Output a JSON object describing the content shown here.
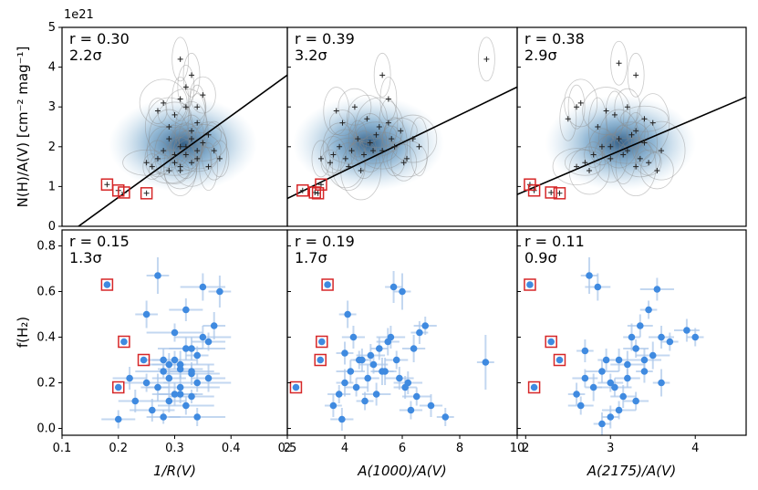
{
  "figure": {
    "y_offset_label": "1e21",
    "top_ylabel": "N(H)/A(V) [cm⁻² mag⁻¹]",
    "bottom_ylabel": "f(H₂)"
  },
  "chart_data": [
    {
      "type": "scatter",
      "panel": "top-left",
      "xlim": [
        0.1,
        0.5
      ],
      "ylim": [
        0,
        5
      ],
      "yticks": [
        "0",
        "1",
        "2",
        "3",
        "4",
        "5"
      ],
      "r_text": "r = 0.30",
      "sig_text": "2.2σ",
      "line": {
        "x": [
          0.1,
          0.5
        ],
        "y": [
          -0.3,
          3.8
        ]
      },
      "x": [
        0.26,
        0.27,
        0.28,
        0.29,
        0.3,
        0.31,
        0.32,
        0.33,
        0.34,
        0.35,
        0.36,
        0.37,
        0.3,
        0.32,
        0.28,
        0.34,
        0.36,
        0.31,
        0.33,
        0.29,
        0.27,
        0.35,
        0.32,
        0.3,
        0.25,
        0.38,
        0.33,
        0.31,
        0.29,
        0.34
      ],
      "y": [
        1.5,
        1.7,
        1.9,
        2.2,
        1.6,
        2.0,
        1.8,
        2.4,
        1.7,
        2.1,
        1.5,
        1.9,
        2.8,
        3.0,
        3.1,
        2.6,
        2.3,
        1.4,
        1.6,
        2.5,
        2.9,
        3.3,
        2.0,
        1.8,
        1.6,
        1.7,
        2.2,
        1.5,
        1.4,
        1.9
      ],
      "highlight_x": [
        0.18,
        0.2,
        0.21,
        0.25
      ],
      "highlight_y": [
        1.05,
        0.9,
        0.85,
        0.83
      ],
      "outliers_x": [
        0.31,
        0.33,
        0.32,
        0.31,
        0.34
      ],
      "outliers_y": [
        4.2,
        3.8,
        3.5,
        3.2,
        3.0
      ]
    },
    {
      "type": "scatter",
      "panel": "top-middle",
      "xlim": [
        2.5,
        10
      ],
      "ylim": [
        0,
        5
      ],
      "r_text": "r = 0.39",
      "sig_text": "3.2σ",
      "line": {
        "x": [
          2.5,
          10
        ],
        "y": [
          0.7,
          3.5
        ]
      },
      "x": [
        3.9,
        4.0,
        4.2,
        4.4,
        4.6,
        4.8,
        5.0,
        5.2,
        5.4,
        5.6,
        5.8,
        6.0,
        6.2,
        6.4,
        6.6,
        6.8,
        4.3,
        4.7,
        5.1,
        5.5,
        5.9,
        6.3,
        4.5,
        4.9,
        5.3,
        3.6,
        4.1
      ],
      "y": [
        1.6,
        1.8,
        2.0,
        1.7,
        1.9,
        2.2,
        1.8,
        2.1,
        2.3,
        1.9,
        2.6,
        2.0,
        2.4,
        1.7,
        2.2,
        2.0,
        2.6,
        3.0,
        2.7,
        2.5,
        2.2,
        1.6,
        1.5,
        1.4,
        1.9,
        1.7,
        2.9
      ],
      "highlight_x": [
        3.0,
        3.4,
        3.5,
        3.6
      ],
      "highlight_y": [
        0.9,
        0.85,
        0.83,
        1.05
      ],
      "outliers_x": [
        5.6,
        9.0,
        5.8
      ],
      "outliers_y": [
        3.8,
        4.2,
        3.2
      ]
    },
    {
      "type": "scatter",
      "panel": "top-right",
      "xlim": [
        1.9,
        4.6
      ],
      "ylim": [
        0,
        5
      ],
      "r_text": "r = 0.38",
      "sig_text": "2.9σ",
      "line": {
        "x": [
          1.9,
          4.6
        ],
        "y": [
          0.8,
          3.25
        ]
      },
      "x": [
        2.8,
        2.9,
        3.0,
        3.1,
        3.2,
        3.3,
        3.4,
        3.5,
        2.7,
        2.6,
        3.05,
        3.15,
        3.25,
        3.35,
        2.95,
        2.85,
        3.45,
        3.55,
        2.75,
        3.6,
        3.0,
        3.2,
        2.65,
        3.3,
        3.4
      ],
      "y": [
        1.8,
        2.0,
        1.7,
        2.2,
        1.9,
        2.4,
        2.1,
        2.6,
        1.6,
        1.5,
        2.8,
        1.8,
        2.3,
        1.7,
        2.9,
        2.5,
        1.6,
        1.4,
        1.4,
        1.9,
        2.0,
        3.0,
        3.1,
        1.5,
        2.7
      ],
      "highlight_x": [
        2.05,
        2.1,
        2.3,
        2.4
      ],
      "highlight_y": [
        1.05,
        0.9,
        0.85,
        0.83
      ],
      "outliers_x": [
        3.1,
        3.3,
        2.6,
        2.5
      ],
      "outliers_y": [
        4.1,
        3.8,
        3.0,
        2.7
      ]
    },
    {
      "type": "scatter",
      "panel": "bottom-left",
      "xlim": [
        0.1,
        0.5
      ],
      "ylim": [
        -0.03,
        0.87
      ],
      "xticks": [
        "0.1",
        "0.2",
        "0.3",
        "0.4",
        "0.5"
      ],
      "yticks": [
        "0.0",
        "0.2",
        "0.4",
        "0.6",
        "0.8"
      ],
      "xlabel": "1/R(V)",
      "r_text": "r = 0.15",
      "sig_text": "1.3σ",
      "x": [
        0.23,
        0.25,
        0.27,
        0.28,
        0.29,
        0.3,
        0.31,
        0.32,
        0.33,
        0.34,
        0.35,
        0.36,
        0.37,
        0.3,
        0.32,
        0.28,
        0.26,
        0.34,
        0.36,
        0.31,
        0.33,
        0.29,
        0.27,
        0.35,
        0.32,
        0.3,
        0.38,
        0.33,
        0.31,
        0.29,
        0.34,
        0.28,
        0.25,
        0.2,
        0.22,
        0.31,
        0.33
      ],
      "y": [
        0.12,
        0.2,
        0.18,
        0.25,
        0.22,
        0.3,
        0.28,
        0.35,
        0.25,
        0.32,
        0.4,
        0.38,
        0.45,
        0.15,
        0.1,
        0.05,
        0.08,
        0.2,
        0.22,
        0.18,
        0.14,
        0.28,
        0.67,
        0.62,
        0.52,
        0.42,
        0.6,
        0.35,
        0.15,
        0.12,
        0.05,
        0.3,
        0.5,
        0.04,
        0.22,
        0.26,
        0.24
      ],
      "err_x": [
        0.03,
        0.04,
        0.02,
        0.05,
        0.03,
        0.04,
        0.06,
        0.03,
        0.04,
        0.02,
        0.05,
        0.03,
        0.02,
        0.04,
        0.05,
        0.03,
        0.04,
        0.06,
        0.03,
        0.07,
        0.04,
        0.03,
        0.02,
        0.04,
        0.03,
        0.05,
        0.02,
        0.06,
        0.04,
        0.03,
        0.05,
        0.03,
        0.02,
        0.03,
        0.03,
        0.04,
        0.05
      ],
      "err_y": [
        0.05,
        0.04,
        0.06,
        0.03,
        0.05,
        0.04,
        0.06,
        0.05,
        0.03,
        0.04,
        0.05,
        0.04,
        0.06,
        0.05,
        0.04,
        0.03,
        0.05,
        0.04,
        0.06,
        0.05,
        0.03,
        0.05,
        0.08,
        0.06,
        0.05,
        0.04,
        0.07,
        0.05,
        0.04,
        0.05,
        0.04,
        0.05,
        0.06,
        0.04,
        0.05,
        0.04,
        0.05
      ],
      "highlight_x": [
        0.18,
        0.21,
        0.245,
        0.2
      ],
      "highlight_y": [
        0.63,
        0.38,
        0.3,
        0.18
      ]
    },
    {
      "type": "scatter",
      "panel": "bottom-middle",
      "xlim": [
        2,
        10
      ],
      "ylim": [
        -0.03,
        0.87
      ],
      "xticks": [
        "2",
        "4",
        "6",
        "8",
        "10"
      ],
      "xlabel": "A(1000)/A(V)",
      "r_text": "r = 0.19",
      "sig_text": "1.7σ",
      "x": [
        3.6,
        3.8,
        4.0,
        4.2,
        4.4,
        4.6,
        4.8,
        5.0,
        5.2,
        5.4,
        5.6,
        5.8,
        6.0,
        6.2,
        6.4,
        6.6,
        6.8,
        4.1,
        4.3,
        4.5,
        4.9,
        5.3,
        5.7,
        6.1,
        6.5,
        7.0,
        7.5,
        8.9,
        3.9,
        4.7,
        5.1,
        5.5,
        4.0,
        6.3,
        5.9
      ],
      "y": [
        0.1,
        0.15,
        0.2,
        0.25,
        0.18,
        0.3,
        0.22,
        0.28,
        0.35,
        0.25,
        0.4,
        0.3,
        0.6,
        0.2,
        0.35,
        0.42,
        0.45,
        0.5,
        0.4,
        0.3,
        0.32,
        0.25,
        0.62,
        0.18,
        0.14,
        0.1,
        0.05,
        0.29,
        0.04,
        0.12,
        0.15,
        0.38,
        0.33,
        0.08,
        0.22
      ],
      "err_x": [
        0.3,
        0.4,
        0.3,
        0.5,
        0.4,
        0.3,
        0.4,
        0.5,
        0.3,
        0.4,
        0.5,
        0.4,
        0.3,
        0.5,
        0.4,
        0.3,
        0.4,
        0.3,
        0.4,
        0.3,
        0.5,
        0.4,
        0.3,
        0.4,
        0.5,
        0.4,
        0.3,
        0.3,
        0.4,
        0.3,
        0.5,
        0.4,
        0.3,
        0.4,
        0.5
      ],
      "err_y": [
        0.05,
        0.04,
        0.06,
        0.05,
        0.04,
        0.05,
        0.06,
        0.04,
        0.05,
        0.06,
        0.05,
        0.04,
        0.08,
        0.05,
        0.06,
        0.05,
        0.04,
        0.06,
        0.05,
        0.04,
        0.05,
        0.06,
        0.07,
        0.05,
        0.04,
        0.05,
        0.04,
        0.12,
        0.05,
        0.04,
        0.05,
        0.06,
        0.05,
        0.04,
        0.05
      ],
      "highlight_x": [
        2.3,
        3.15,
        3.2,
        3.4
      ],
      "highlight_y": [
        0.18,
        0.3,
        0.38,
        0.63
      ]
    },
    {
      "type": "scatter",
      "panel": "bottom-right",
      "xlim": [
        1.9,
        4.6
      ],
      "ylim": [
        -0.03,
        0.87
      ],
      "xticks": [
        "2",
        "3",
        "4"
      ],
      "xlabel": "A(2175)/A(V)",
      "r_text": "r = 0.11",
      "sig_text": "0.9σ",
      "x": [
        2.6,
        2.7,
        2.8,
        2.9,
        3.0,
        3.1,
        3.2,
        3.3,
        3.4,
        3.5,
        3.6,
        3.7,
        2.75,
        2.85,
        2.95,
        3.05,
        3.15,
        3.25,
        3.35,
        3.45,
        3.55,
        2.65,
        3.0,
        3.2,
        3.4,
        3.6,
        3.9,
        4.0,
        2.9,
        3.3,
        2.7,
        3.1
      ],
      "y": [
        0.15,
        0.22,
        0.18,
        0.25,
        0.2,
        0.3,
        0.28,
        0.35,
        0.25,
        0.32,
        0.4,
        0.38,
        0.67,
        0.62,
        0.3,
        0.18,
        0.14,
        0.4,
        0.45,
        0.52,
        0.61,
        0.1,
        0.05,
        0.22,
        0.3,
        0.2,
        0.43,
        0.4,
        0.02,
        0.12,
        0.34,
        0.08
      ],
      "err_x": [
        0.1,
        0.15,
        0.1,
        0.2,
        0.15,
        0.1,
        0.2,
        0.15,
        0.1,
        0.2,
        0.15,
        0.1,
        0.1,
        0.15,
        0.1,
        0.2,
        0.15,
        0.1,
        0.15,
        0.1,
        0.2,
        0.15,
        0.1,
        0.15,
        0.2,
        0.1,
        0.15,
        0.1,
        0.1,
        0.15,
        0.1,
        0.2
      ],
      "err_y": [
        0.05,
        0.04,
        0.06,
        0.05,
        0.04,
        0.05,
        0.06,
        0.04,
        0.05,
        0.06,
        0.05,
        0.04,
        0.08,
        0.06,
        0.05,
        0.04,
        0.05,
        0.06,
        0.05,
        0.04,
        0.05,
        0.04,
        0.05,
        0.04,
        0.05,
        0.06,
        0.05,
        0.04,
        0.05,
        0.04,
        0.05,
        0.04
      ],
      "highlight_x": [
        2.05,
        2.1,
        2.3,
        2.4
      ],
      "highlight_y": [
        0.63,
        0.18,
        0.38,
        0.3
      ]
    }
  ]
}
